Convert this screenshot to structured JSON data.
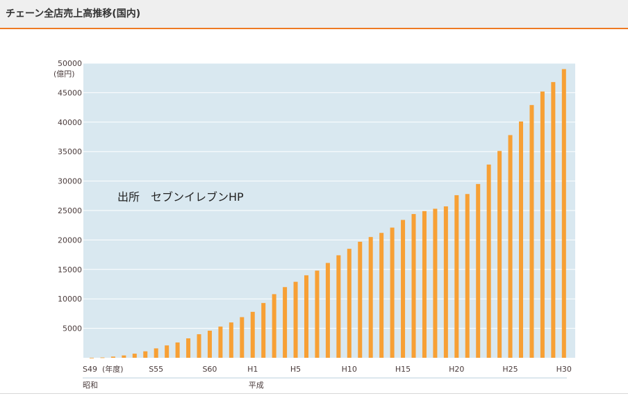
{
  "header": {
    "title": "チェーン全店売上高推移(国内)"
  },
  "colors": {
    "bar": "#f7a035",
    "plot_bg": "#d9e8f0",
    "accent": "#ee7a22",
    "grid": "#ffffff"
  },
  "chart_data": {
    "type": "bar",
    "title": "",
    "ylabel": "(億円)",
    "xlabel": "(年度)",
    "ylim": [
      0,
      50000
    ],
    "yticks": [
      5000,
      10000,
      15000,
      20000,
      25000,
      30000,
      35000,
      40000,
      45000,
      50000
    ],
    "xtick_labels": [
      "S49",
      "S55",
      "S60",
      "H1",
      "H5",
      "H10",
      "H15",
      "H20",
      "H25",
      "H30"
    ],
    "era_labels": [
      "昭和",
      "平成"
    ],
    "annotation": "出所　セブンイレブンHP",
    "categories": [
      "S49",
      "S50",
      "S51",
      "S52",
      "S53",
      "S54",
      "S55",
      "S56",
      "S57",
      "S58",
      "S59",
      "S60",
      "S61",
      "S62",
      "S63",
      "H1",
      "H2",
      "H3",
      "H4",
      "H5",
      "H6",
      "H7",
      "H8",
      "H9",
      "H10",
      "H11",
      "H12",
      "H13",
      "H14",
      "H15",
      "H16",
      "H17",
      "H18",
      "H19",
      "H20",
      "H21",
      "H22",
      "H23",
      "H24",
      "H25",
      "H26",
      "H27",
      "H28",
      "H29",
      "H30"
    ],
    "values": [
      7,
      50,
      200,
      400,
      700,
      1100,
      1600,
      2100,
      2600,
      3300,
      4000,
      4600,
      5300,
      6000,
      6900,
      7800,
      9300,
      10800,
      12000,
      12900,
      14000,
      14800,
      16100,
      17400,
      18500,
      19700,
      20500,
      21200,
      22100,
      23400,
      24400,
      24900,
      25300,
      25700,
      27600,
      27800,
      29500,
      32800,
      35100,
      37800,
      40100,
      42900,
      45200,
      46800,
      49000
    ]
  }
}
